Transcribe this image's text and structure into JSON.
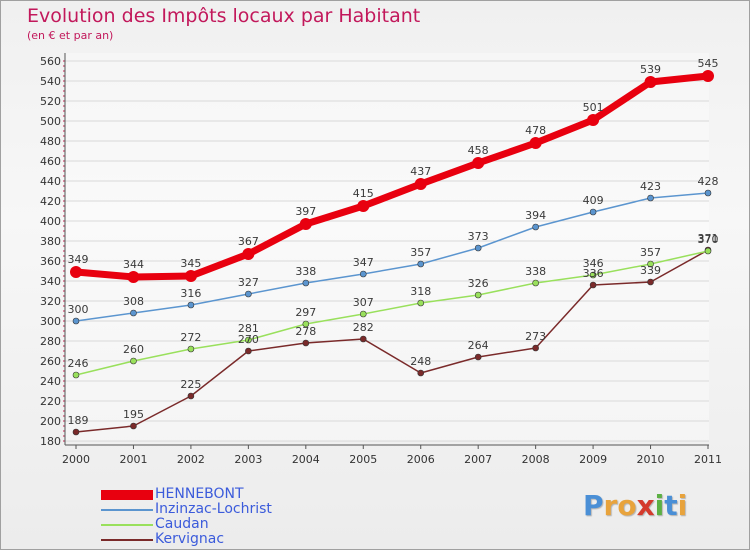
{
  "title": "Evolution des Impôts locaux par Habitant",
  "subtitle": "(en € et par an)",
  "logo": {
    "letters": [
      "P",
      "r",
      "o",
      "x",
      "i",
      "t",
      "i"
    ],
    "colors": [
      "#4a8fd6",
      "#e8a33c",
      "#e8a33c",
      "#d43a2c",
      "#5cb043",
      "#4a8fd6",
      "#e8a33c"
    ]
  },
  "chart_data": {
    "type": "line",
    "title": "Evolution des Impôts locaux par Habitant",
    "subtitle": "(en € et par an)",
    "xlabel": "",
    "ylabel": "",
    "x": [
      "2000",
      "2001",
      "2002",
      "2003",
      "2004",
      "2005",
      "2006",
      "2007",
      "2008",
      "2009",
      "2010",
      "2011"
    ],
    "ylim": [
      180,
      560
    ],
    "yticks": [
      180,
      200,
      220,
      240,
      260,
      280,
      300,
      320,
      340,
      360,
      380,
      400,
      420,
      440,
      460,
      480,
      500,
      520,
      540,
      560
    ],
    "grid": "horizontal",
    "legend_position": "bottom-left",
    "series": [
      {
        "name": "HENNEBONT",
        "color": "#e8000f",
        "values": [
          349,
          344,
          345,
          367,
          397,
          415,
          437,
          458,
          478,
          501,
          539,
          545
        ]
      },
      {
        "name": "Inzinzac-Lochrist",
        "color": "#5b95cf",
        "values": [
          300,
          308,
          316,
          327,
          338,
          347,
          357,
          373,
          394,
          409,
          423,
          428
        ]
      },
      {
        "name": "Caudan",
        "color": "#99e05c",
        "values": [
          246,
          260,
          272,
          281,
          297,
          307,
          318,
          326,
          338,
          346,
          357,
          370
        ]
      },
      {
        "name": "Kervignac",
        "color": "#7a2a2a",
        "values": [
          189,
          195,
          225,
          270,
          278,
          282,
          248,
          264,
          273,
          336,
          339,
          371
        ]
      }
    ]
  }
}
